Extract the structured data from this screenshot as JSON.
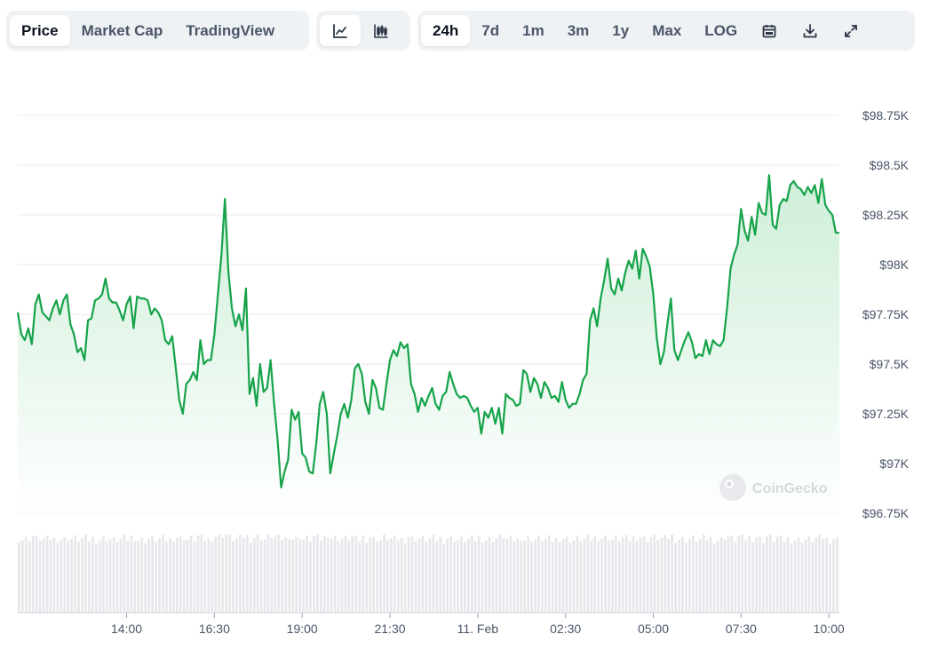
{
  "toolbar": {
    "tabs": [
      "Price",
      "Market Cap",
      "TradingView"
    ],
    "active_tab": "Price",
    "chart_styles": [
      "line-chart-icon",
      "candlestick-icon"
    ],
    "ranges": [
      "24h",
      "7d",
      "1m",
      "3m",
      "1y",
      "Max",
      "LOG"
    ],
    "active_range": "24h",
    "actions": [
      "calendar-icon",
      "download-icon",
      "fullscreen-icon"
    ]
  },
  "watermark": "CoinGecko",
  "colors": {
    "line": "#16a34a",
    "fill_top": "#c6ecd2",
    "volume": "#e6e8eb",
    "grid": "#e8eaed"
  },
  "chart_data": {
    "type": "line",
    "y_tick_labels": [
      "$98.75K",
      "$98.5K",
      "$98.25K",
      "$98K",
      "$97.75K",
      "$97.5K",
      "$97.25K",
      "$97K",
      "$96.75K"
    ],
    "y_ticks": [
      98750,
      98500,
      98250,
      98000,
      97750,
      97500,
      97250,
      97000,
      96750
    ],
    "ylim": [
      96750,
      98750
    ],
    "x_tick_labels": [
      "14:00",
      "16:30",
      "19:00",
      "21:30",
      "11. Feb",
      "02:30",
      "05:00",
      "07:30",
      "10:00"
    ],
    "x_ticks_hours": [
      14,
      16.5,
      19,
      21.5,
      24,
      26.5,
      29,
      31.5,
      34
    ],
    "x_range_hours": [
      10.9,
      34.3
    ],
    "grid": true,
    "legend": "none",
    "volume_bars": true,
    "price": [
      [
        10.9,
        97760
      ],
      [
        11,
        97650
      ],
      [
        11.1,
        97620
      ],
      [
        11.2,
        97680
      ],
      [
        11.3,
        97600
      ],
      [
        11.4,
        97800
      ],
      [
        11.5,
        97850
      ],
      [
        11.6,
        97760
      ],
      [
        11.7,
        97740
      ],
      [
        11.8,
        97720
      ],
      [
        11.9,
        97780
      ],
      [
        12,
        97820
      ],
      [
        12.1,
        97750
      ],
      [
        12.2,
        97820
      ],
      [
        12.3,
        97850
      ],
      [
        12.4,
        97700
      ],
      [
        12.5,
        97650
      ],
      [
        12.6,
        97560
      ],
      [
        12.7,
        97580
      ],
      [
        12.8,
        97520
      ],
      [
        12.9,
        97720
      ],
      [
        13,
        97730
      ],
      [
        13.1,
        97820
      ],
      [
        13.2,
        97830
      ],
      [
        13.3,
        97850
      ],
      [
        13.4,
        97930
      ],
      [
        13.5,
        97830
      ],
      [
        13.6,
        97810
      ],
      [
        13.7,
        97810
      ],
      [
        13.8,
        97770
      ],
      [
        13.9,
        97720
      ],
      [
        14,
        97800
      ],
      [
        14.1,
        97840
      ],
      [
        14.2,
        97680
      ],
      [
        14.3,
        97840
      ],
      [
        14.4,
        97830
      ],
      [
        14.5,
        97830
      ],
      [
        14.6,
        97820
      ],
      [
        14.7,
        97750
      ],
      [
        14.8,
        97780
      ],
      [
        14.9,
        97760
      ],
      [
        15,
        97720
      ],
      [
        15.1,
        97620
      ],
      [
        15.2,
        97600
      ],
      [
        15.3,
        97640
      ],
      [
        15.4,
        97480
      ],
      [
        15.5,
        97320
      ],
      [
        15.6,
        97250
      ],
      [
        15.7,
        97400
      ],
      [
        15.8,
        97420
      ],
      [
        15.9,
        97460
      ],
      [
        16,
        97420
      ],
      [
        16.1,
        97620
      ],
      [
        16.2,
        97500
      ],
      [
        16.3,
        97520
      ],
      [
        16.4,
        97520
      ],
      [
        16.5,
        97650
      ],
      [
        16.6,
        97850
      ],
      [
        16.7,
        98050
      ],
      [
        16.8,
        98330
      ],
      [
        16.9,
        97960
      ],
      [
        17,
        97780
      ],
      [
        17.1,
        97690
      ],
      [
        17.2,
        97750
      ],
      [
        17.3,
        97670
      ],
      [
        17.4,
        97880
      ],
      [
        17.5,
        97350
      ],
      [
        17.6,
        97430
      ],
      [
        17.7,
        97290
      ],
      [
        17.8,
        97500
      ],
      [
        17.9,
        97360
      ],
      [
        18,
        97380
      ],
      [
        18.1,
        97520
      ],
      [
        18.2,
        97300
      ],
      [
        18.3,
        97120
      ],
      [
        18.4,
        96880
      ],
      [
        18.5,
        96960
      ],
      [
        18.6,
        97020
      ],
      [
        18.7,
        97270
      ],
      [
        18.8,
        97220
      ],
      [
        18.9,
        97260
      ],
      [
        19,
        97050
      ],
      [
        19.1,
        97030
      ],
      [
        19.2,
        96960
      ],
      [
        19.3,
        96950
      ],
      [
        19.4,
        97100
      ],
      [
        19.5,
        97300
      ],
      [
        19.6,
        97360
      ],
      [
        19.7,
        97250
      ],
      [
        19.8,
        96950
      ],
      [
        19.9,
        97050
      ],
      [
        20,
        97140
      ],
      [
        20.1,
        97250
      ],
      [
        20.2,
        97300
      ],
      [
        20.3,
        97230
      ],
      [
        20.4,
        97320
      ],
      [
        20.5,
        97480
      ],
      [
        20.6,
        97500
      ],
      [
        20.7,
        97450
      ],
      [
        20.8,
        97310
      ],
      [
        20.9,
        97250
      ],
      [
        21,
        97420
      ],
      [
        21.1,
        97380
      ],
      [
        21.2,
        97280
      ],
      [
        21.3,
        97270
      ],
      [
        21.4,
        97400
      ],
      [
        21.5,
        97520
      ],
      [
        21.6,
        97570
      ],
      [
        21.7,
        97540
      ],
      [
        21.8,
        97610
      ],
      [
        21.9,
        97580
      ],
      [
        22,
        97600
      ],
      [
        22.1,
        97400
      ],
      [
        22.2,
        97350
      ],
      [
        22.3,
        97260
      ],
      [
        22.4,
        97330
      ],
      [
        22.5,
        97290
      ],
      [
        22.6,
        97340
      ],
      [
        22.7,
        97380
      ],
      [
        22.8,
        97300
      ],
      [
        22.9,
        97270
      ],
      [
        23,
        97340
      ],
      [
        23.1,
        97360
      ],
      [
        23.2,
        97460
      ],
      [
        23.3,
        97400
      ],
      [
        23.4,
        97350
      ],
      [
        23.5,
        97330
      ],
      [
        23.6,
        97340
      ],
      [
        23.7,
        97330
      ],
      [
        23.8,
        97290
      ],
      [
        23.9,
        97260
      ],
      [
        24,
        97280
      ],
      [
        24.1,
        97150
      ],
      [
        24.2,
        97260
      ],
      [
        24.3,
        97230
      ],
      [
        24.4,
        97280
      ],
      [
        24.5,
        97200
      ],
      [
        24.6,
        97280
      ],
      [
        24.7,
        97150
      ],
      [
        24.8,
        97350
      ],
      [
        24.9,
        97330
      ],
      [
        25,
        97320
      ],
      [
        25.1,
        97290
      ],
      [
        25.2,
        97300
      ],
      [
        25.3,
        97470
      ],
      [
        25.4,
        97450
      ],
      [
        25.5,
        97360
      ],
      [
        25.6,
        97430
      ],
      [
        25.7,
        97400
      ],
      [
        25.8,
        97330
      ],
      [
        25.9,
        97410
      ],
      [
        26,
        97380
      ],
      [
        26.1,
        97330
      ],
      [
        26.2,
        97340
      ],
      [
        26.3,
        97310
      ],
      [
        26.4,
        97410
      ],
      [
        26.5,
        97320
      ],
      [
        26.6,
        97280
      ],
      [
        26.7,
        97300
      ],
      [
        26.8,
        97300
      ],
      [
        26.9,
        97350
      ],
      [
        27,
        97420
      ],
      [
        27.1,
        97450
      ],
      [
        27.2,
        97720
      ],
      [
        27.3,
        97780
      ],
      [
        27.4,
        97690
      ],
      [
        27.5,
        97830
      ],
      [
        27.6,
        97920
      ],
      [
        27.7,
        98030
      ],
      [
        27.8,
        97880
      ],
      [
        27.9,
        97850
      ],
      [
        28,
        97930
      ],
      [
        28.1,
        97870
      ],
      [
        28.2,
        97960
      ],
      [
        28.3,
        98020
      ],
      [
        28.4,
        97980
      ],
      [
        28.5,
        98070
      ],
      [
        28.6,
        97930
      ],
      [
        28.7,
        98080
      ],
      [
        28.8,
        98040
      ],
      [
        28.9,
        97990
      ],
      [
        29,
        97850
      ],
      [
        29.1,
        97630
      ],
      [
        29.2,
        97500
      ],
      [
        29.3,
        97560
      ],
      [
        29.4,
        97700
      ],
      [
        29.5,
        97830
      ],
      [
        29.6,
        97570
      ],
      [
        29.7,
        97520
      ],
      [
        29.8,
        97570
      ],
      [
        29.9,
        97620
      ],
      [
        30,
        97660
      ],
      [
        30.1,
        97610
      ],
      [
        30.2,
        97530
      ],
      [
        30.3,
        97550
      ],
      [
        30.4,
        97540
      ],
      [
        30.5,
        97620
      ],
      [
        30.6,
        97550
      ],
      [
        30.7,
        97620
      ],
      [
        30.8,
        97600
      ],
      [
        30.9,
        97590
      ],
      [
        31,
        97620
      ],
      [
        31.1,
        97780
      ],
      [
        31.2,
        97980
      ],
      [
        31.3,
        98050
      ],
      [
        31.4,
        98100
      ],
      [
        31.5,
        98280
      ],
      [
        31.6,
        98170
      ],
      [
        31.7,
        98120
      ],
      [
        31.8,
        98240
      ],
      [
        31.9,
        98150
      ],
      [
        32,
        98310
      ],
      [
        32.1,
        98260
      ],
      [
        32.2,
        98250
      ],
      [
        32.3,
        98450
      ],
      [
        32.4,
        98200
      ],
      [
        32.5,
        98180
      ],
      [
        32.6,
        98300
      ],
      [
        32.7,
        98330
      ],
      [
        32.8,
        98320
      ],
      [
        32.9,
        98400
      ],
      [
        33,
        98420
      ],
      [
        33.1,
        98390
      ],
      [
        33.2,
        98380
      ],
      [
        33.3,
        98350
      ],
      [
        33.4,
        98390
      ],
      [
        33.5,
        98360
      ],
      [
        33.6,
        98400
      ],
      [
        33.7,
        98310
      ],
      [
        33.8,
        98430
      ],
      [
        33.9,
        98300
      ],
      [
        34,
        98270
      ],
      [
        34.1,
        98250
      ],
      [
        34.2,
        98160
      ],
      [
        34.3,
        98160
      ]
    ]
  }
}
